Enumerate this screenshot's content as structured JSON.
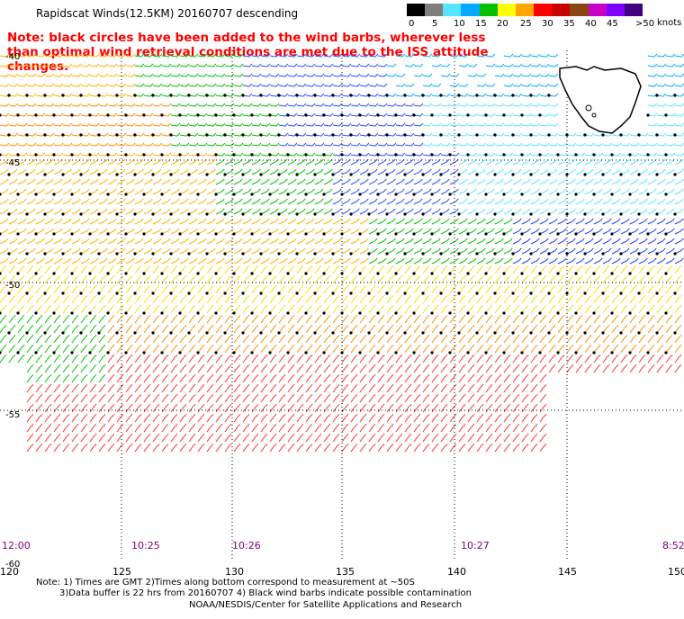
{
  "title": "Rapidscat Winds(12.5KM) 20160707 descending",
  "note": "Note: black circles have been added to the wind barbs, wherever less than optimal wind retrieval conditions are met due to the ISS attitude changes.",
  "scale": {
    "labels": [
      "0",
      "5",
      "10",
      "15",
      "20",
      "25",
      "30",
      "35",
      "40",
      "45",
      ">50"
    ],
    "unit": "knots",
    "colors": [
      "#000000",
      "#7f7f7f",
      "#55e6ff",
      "#00aaff",
      "#00c000",
      "#ffff00",
      "#ffa500",
      "#ff0000",
      "#c80000",
      "#8b4513",
      "#c800c8",
      "#8000ff",
      "#400080"
    ]
  },
  "lat_labels": [
    "-40",
    "-45",
    "-50",
    "-55",
    "-60"
  ],
  "lon_labels": [
    "120",
    "125",
    "130",
    "135",
    "140",
    "145",
    "150"
  ],
  "times": [
    "12:00",
    "10:25",
    "10:26",
    "10:27",
    "8:52"
  ],
  "footer": {
    "line1": "Note: 1) Times are GMT 2)Times along bottom correspond to measurement at ~50S",
    "line2": "3)Data buffer is 22 hrs from 20160707 4) Black wind barbs indicate possible contamination",
    "line3": "NOAA/NESDIS/Center for Satellite Applications and Research"
  }
}
